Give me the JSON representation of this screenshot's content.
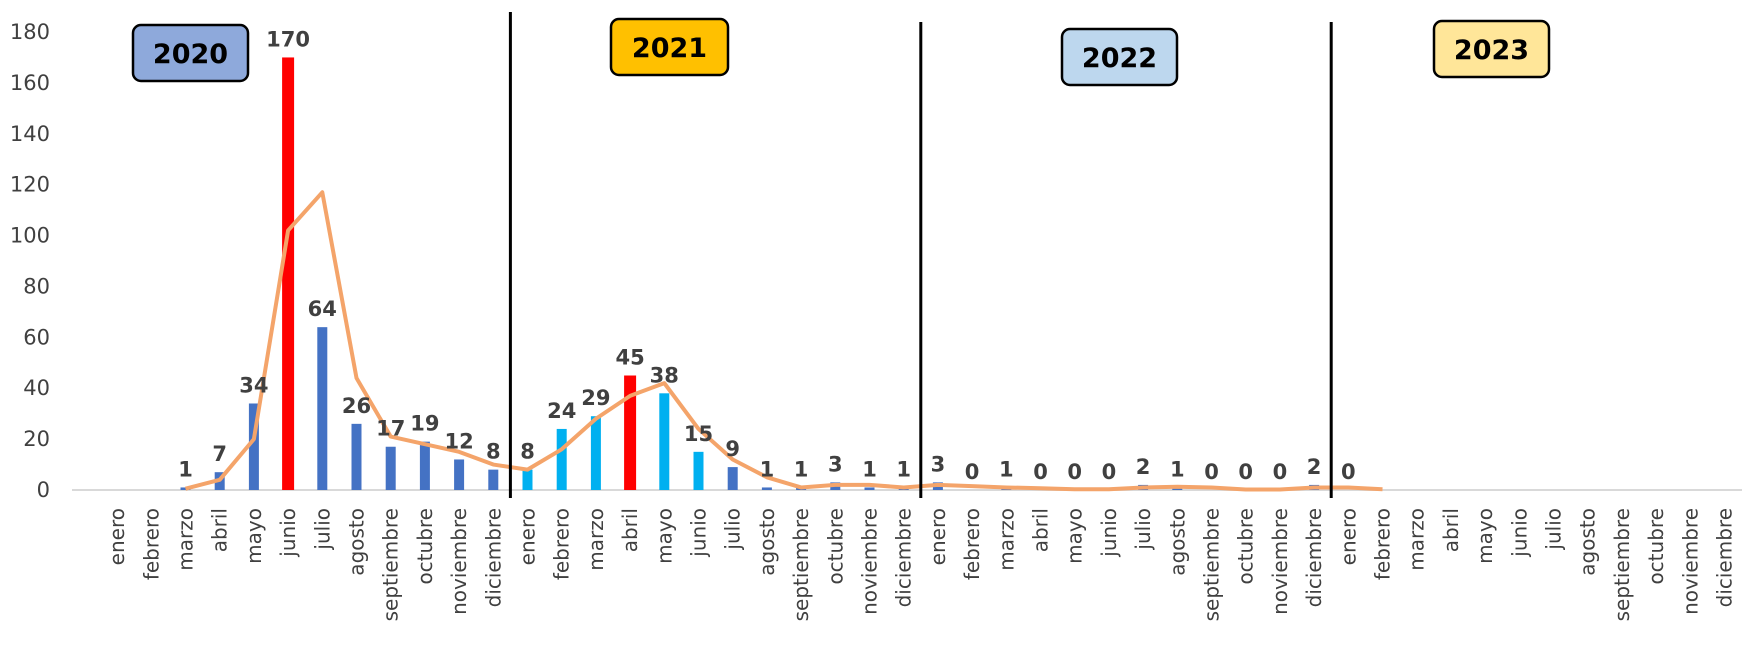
{
  "chart_data": {
    "type": "bar",
    "title": "",
    "xlabel": "",
    "ylabel": "",
    "ylim": [
      0,
      180
    ],
    "yticks": [
      0,
      20,
      40,
      60,
      80,
      100,
      120,
      140,
      160,
      180
    ],
    "grid": false,
    "legend": "none",
    "years": [
      {
        "label": "2020",
        "color": "#8EA9DB"
      },
      {
        "label": "2021",
        "color": "#FFC000"
      },
      {
        "label": "2022",
        "color": "#BDD7EE"
      },
      {
        "label": "2023",
        "color": "#FFE699"
      }
    ],
    "categories": [
      "enero",
      "febrero",
      "marzo",
      "abril",
      "mayo",
      "junio",
      "julio",
      "agosto",
      "septiembre",
      "octubre",
      "noviembre",
      "diciembre",
      "enero",
      "febrero",
      "marzo",
      "abril",
      "mayo",
      "junio",
      "julio",
      "agosto",
      "septiembre",
      "octubre",
      "noviembre",
      "diciembre",
      "enero",
      "febrero",
      "marzo",
      "abril",
      "mayo",
      "junio",
      "julio",
      "agosto",
      "septiembre",
      "octubre",
      "noviembre",
      "diciembre",
      "enero",
      "febrero",
      "marzo",
      "abril",
      "mayo",
      "junio",
      "julio",
      "agosto",
      "septiembre",
      "octubre",
      "noviembre",
      "diciembre"
    ],
    "values": [
      null,
      null,
      1,
      7,
      34,
      170,
      64,
      26,
      17,
      19,
      12,
      8,
      8,
      24,
      29,
      45,
      38,
      15,
      9,
      1,
      1,
      3,
      1,
      1,
      3,
      0,
      1,
      0,
      0,
      0,
      2,
      1,
      0,
      0,
      0,
      2,
      0,
      null,
      null,
      null,
      null,
      null,
      null,
      null,
      null,
      null,
      null,
      null
    ],
    "bar_colors": [
      "#4472C4",
      "#4472C4",
      "#4472C4",
      "#4472C4",
      "#4472C4",
      "#FF0000",
      "#4472C4",
      "#4472C4",
      "#4472C4",
      "#4472C4",
      "#4472C4",
      "#4472C4",
      "#00B0F0",
      "#00B0F0",
      "#00B0F0",
      "#FF0000",
      "#00B0F0",
      "#00B0F0",
      "#4472C4",
      "#4472C4",
      "#4472C4",
      "#4472C4",
      "#4472C4",
      "#4472C4",
      "#4472C4",
      "#4472C4",
      "#4472C4",
      "#4472C4",
      "#4472C4",
      "#4472C4",
      "#4472C4",
      "#4472C4",
      "#4472C4",
      "#4472C4",
      "#4472C4",
      "#4472C4",
      "#4472C4",
      "#4472C4",
      "#4472C4",
      "#4472C4",
      "#4472C4",
      "#4472C4",
      "#4472C4",
      "#4472C4",
      "#4472C4",
      "#4472C4",
      "#4472C4",
      "#4472C4"
    ],
    "trend_line": {
      "color": "#F4A46A",
      "values": [
        null,
        null,
        0.5,
        4,
        20,
        102,
        117,
        44,
        21,
        18,
        15,
        10,
        8,
        16,
        28,
        37,
        42,
        24,
        12,
        5,
        1,
        2,
        2,
        1,
        2,
        1.5,
        1,
        0.7,
        0.3,
        0.3,
        1,
        1.3,
        1,
        0.2,
        0.2,
        1,
        1,
        0.3,
        null,
        null,
        null,
        null,
        null,
        null,
        null,
        null,
        null,
        null
      ]
    }
  }
}
